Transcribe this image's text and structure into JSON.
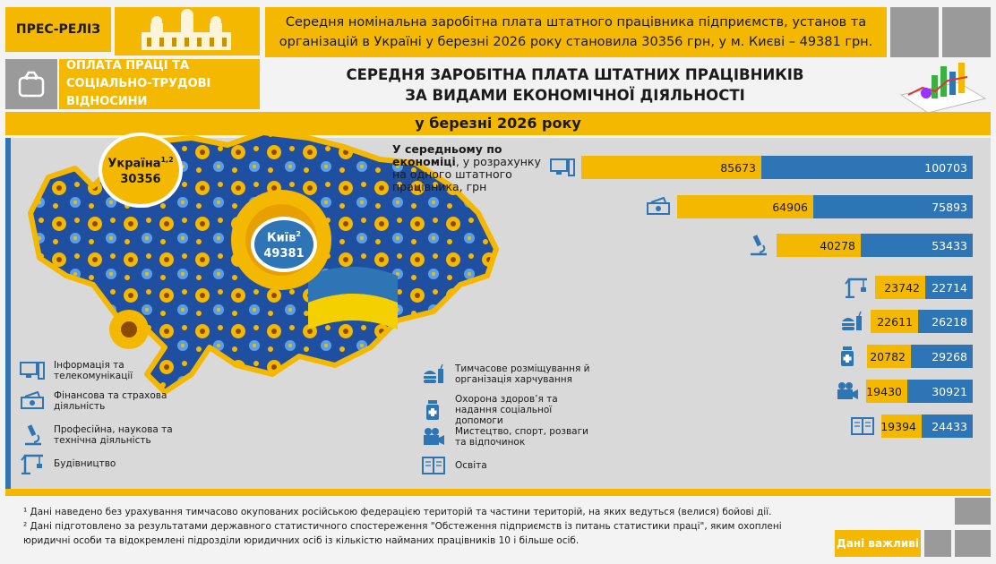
{
  "header": {
    "press_release": "ПРЕС-РЕЛІЗ",
    "headline": "Середня номінальна заробітна плата штатного працівника підприємств, установ та організацій в Україні у березні 2026 року становила 30356 грн, у м. Києві – 49381 грн.",
    "section": "ОПЛАТА ПРАЦІ ТА СОЦІАЛЬНО-ТРУДОВІ ВІДНОСИНИ",
    "title_line1": "СЕРЕДНЯ ЗАРОБІТНА ПЛАТА ШТАТНИХ ПРАЦІВНИКІВ",
    "title_line2": "ЗА ВИДАМИ ЕКОНОМІЧНОЇ ДІЯЛЬНОСТІ",
    "period": "у березні 2026 року"
  },
  "map": {
    "ukraine_label": "Україна",
    "ukraine_sup": "1,2",
    "ukraine_value": "30356",
    "kyiv_label": "Київ",
    "kyiv_sup": "2",
    "kyiv_value": "49381"
  },
  "avg_note": {
    "bold": "У середньому по економіці",
    "rest": ", у розрахунку на одного штатного працівника, грн"
  },
  "legend": [
    {
      "icon": "computer-icon",
      "label": "Інформація та телекомунікації"
    },
    {
      "icon": "money-icon",
      "label": "Фінансова та страхова діяльність"
    },
    {
      "icon": "microscope-icon",
      "label": "Професійна, наукова та технічна діяльність"
    },
    {
      "icon": "crane-icon",
      "label": "Будівництво"
    },
    {
      "icon": "food-icon",
      "label": "Тимчасове розміщування й організація харчування"
    },
    {
      "icon": "medicine-icon",
      "label": "Охорона здоров’я та надання соціальної допомоги"
    },
    {
      "icon": "camera-icon",
      "label": "Мистецтво, спорт, розваги та відпочинок"
    },
    {
      "icon": "book-icon",
      "label": "Освіта"
    }
  ],
  "chart_data": {
    "type": "bar",
    "orientation": "horizontal",
    "stacked": true,
    "categories": [
      "Інформація та телекомунікації",
      "Фінансова та страхова діяльність",
      "Професійна, наукова та технічна діяльність",
      "Будівництво",
      "Тимчасове розміщування й організація харчування",
      "Охорона здоров’я та надання соціальної допомоги",
      "Мистецтво, спорт, розваги та відпочинок",
      "Освіта"
    ],
    "series": [
      {
        "color": "#f5b800",
        "values": [
          85673,
          64906,
          40278,
          23742,
          22611,
          20782,
          19430,
          19394
        ]
      },
      {
        "color": "#2e75b6",
        "values": [
          100703,
          75893,
          53433,
          22714,
          26218,
          29268,
          30921,
          24433
        ]
      }
    ]
  },
  "footnotes": {
    "note1": "¹ Дані наведено без урахування тимчасово окупованих російською федерацією територій та частини територій, на яких ведуться (велися) бойові дії.",
    "note2": "² Дані підготовлено за результатами державного статистичного спостереження \"Обстеження підприємств із питань статистики праці\", яким охоплені юридичні особи та відокремлені підрозділи  юридичних осіб із кількістю найманих працівників 10 і більше осіб."
  },
  "important_label": "Дані важливі",
  "colors": {
    "accent": "#f5b800",
    "blue": "#2e75b6",
    "gray": "#9a9a9a"
  }
}
